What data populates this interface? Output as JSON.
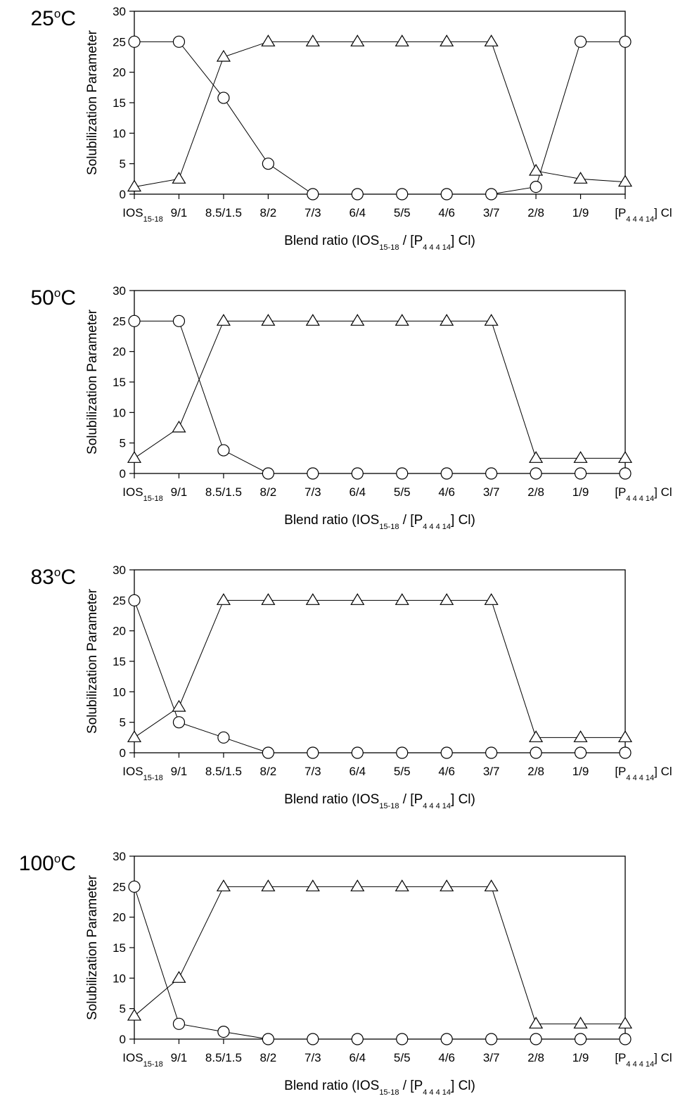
{
  "chart_data": [
    {
      "type": "line",
      "panel_label": "25°C",
      "temperature_value": "25",
      "temperature_unit_sup": "o",
      "temperature_unit": "C",
      "ylabel": "Solubilization Parameter",
      "xlabel_parts": [
        "Blend ratio (IOS",
        "15-18",
        " / [P",
        "4 4 4 14",
        "] Cl)"
      ],
      "ylim": [
        0,
        30
      ],
      "yticks": [
        0,
        5,
        10,
        15,
        20,
        25,
        30
      ],
      "categories": [
        "IOS15-18",
        "9/1",
        "8.5/1.5",
        "8/2",
        "7/3",
        "6/4",
        "5/5",
        "4/6",
        "3/7",
        "2/8",
        "1/9",
        "[P4 4 4 14] Cl"
      ],
      "series": [
        {
          "marker": "circle",
          "values": [
            25,
            25,
            15.8,
            5,
            0,
            0,
            0,
            0,
            0,
            1.2,
            25,
            25
          ]
        },
        {
          "marker": "triangle",
          "values": [
            1.2,
            2.5,
            22.5,
            25,
            25,
            25,
            25,
            25,
            25,
            3.8,
            2.5,
            2
          ]
        }
      ]
    },
    {
      "type": "line",
      "panel_label": "50°C",
      "temperature_value": "50",
      "temperature_unit_sup": "o",
      "temperature_unit": "C",
      "ylabel": "Solubilization Parameter",
      "xlabel_parts": [
        "Blend ratio (IOS",
        "15-18",
        " / [P",
        "4 4 4 14",
        "] Cl)"
      ],
      "ylim": [
        0,
        30
      ],
      "yticks": [
        0,
        5,
        10,
        15,
        20,
        25,
        30
      ],
      "categories": [
        "IOS15-18",
        "9/1",
        "8.5/1.5",
        "8/2",
        "7/3",
        "6/4",
        "5/5",
        "4/6",
        "3/7",
        "2/8",
        "1/9",
        "[P4 4 4 14] Cl"
      ],
      "series": [
        {
          "marker": "circle",
          "values": [
            25,
            25,
            3.8,
            0,
            0,
            0,
            0,
            0,
            0,
            0,
            0,
            0
          ]
        },
        {
          "marker": "triangle",
          "values": [
            2.5,
            7.5,
            25,
            25,
            25,
            25,
            25,
            25,
            25,
            2.5,
            2.5,
            2.5
          ]
        }
      ]
    },
    {
      "type": "line",
      "panel_label": "83°C",
      "temperature_value": "83",
      "temperature_unit_sup": "o",
      "temperature_unit": "C",
      "ylabel": "Solubilization Parameter",
      "xlabel_parts": [
        "Blend ratio (IOS",
        "15-18",
        " / [P",
        "4 4 4 14",
        "] Cl)"
      ],
      "ylim": [
        0,
        30
      ],
      "yticks": [
        0,
        5,
        10,
        15,
        20,
        25,
        30
      ],
      "categories": [
        "IOS15-18",
        "9/1",
        "8.5/1.5",
        "8/2",
        "7/3",
        "6/4",
        "5/5",
        "4/6",
        "3/7",
        "2/8",
        "1/9",
        "[P4 4 4 14] Cl"
      ],
      "series": [
        {
          "marker": "circle",
          "values": [
            25,
            5,
            2.5,
            0,
            0,
            0,
            0,
            0,
            0,
            0,
            0,
            0
          ]
        },
        {
          "marker": "triangle",
          "values": [
            2.5,
            7.5,
            25,
            25,
            25,
            25,
            25,
            25,
            25,
            2.5,
            2.5,
            2.5
          ]
        }
      ]
    },
    {
      "type": "line",
      "panel_label": "100°C",
      "temperature_value": "100",
      "temperature_unit_sup": "o",
      "temperature_unit": "C",
      "ylabel": "Solubilization Parameter",
      "xlabel_parts": [
        "Blend ratio (IOS",
        "15-18",
        " / [P",
        "4 4 4 14",
        "] Cl)"
      ],
      "ylim": [
        0,
        30
      ],
      "yticks": [
        0,
        5,
        10,
        15,
        20,
        25,
        30
      ],
      "categories": [
        "IOS15-18",
        "9/1",
        "8.5/1.5",
        "8/2",
        "7/3",
        "6/4",
        "5/5",
        "4/6",
        "3/7",
        "2/8",
        "1/9",
        "[P4 4 4 14] Cl"
      ],
      "series": [
        {
          "marker": "circle",
          "values": [
            25,
            2.5,
            1.2,
            0,
            0,
            0,
            0,
            0,
            0,
            0,
            0,
            0
          ]
        },
        {
          "marker": "triangle",
          "values": [
            3.8,
            10,
            25,
            25,
            25,
            25,
            25,
            25,
            25,
            2.5,
            2.5,
            2.5
          ]
        }
      ]
    }
  ]
}
